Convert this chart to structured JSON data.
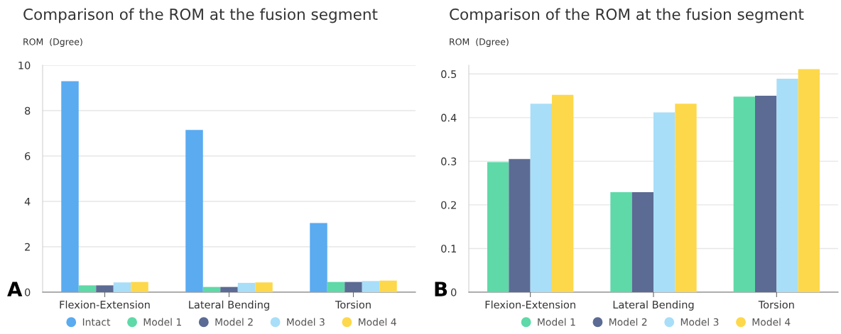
{
  "chart_data": [
    {
      "type": "bar",
      "title": "Comparison of the ROM at the fusion segment",
      "ylabel": "ROM  (Dgree)",
      "categories": [
        "Flexion-Extension",
        "Lateral Bending",
        "Torsion"
      ],
      "series": [
        {
          "name": "Intact",
          "color": "#5aabf0",
          "values": [
            9.3,
            7.15,
            3.05
          ]
        },
        {
          "name": "Model 1",
          "color": "#5fd9a8",
          "values": [
            0.3,
            0.23,
            0.45
          ]
        },
        {
          "name": "Model 2",
          "color": "#5b6b94",
          "values": [
            0.3,
            0.23,
            0.45
          ]
        },
        {
          "name": "Model 3",
          "color": "#a8def8",
          "values": [
            0.43,
            0.41,
            0.49
          ]
        },
        {
          "name": "Model 4",
          "color": "#fdd84a",
          "values": [
            0.45,
            0.43,
            0.51
          ]
        }
      ],
      "ylim": [
        0,
        10
      ],
      "yticks": [
        0,
        2,
        4,
        6,
        8,
        10
      ],
      "grid": "y",
      "legend": "bottom",
      "annotations": [
        "A"
      ]
    },
    {
      "type": "bar",
      "title": "Comparison of the ROM at the fusion segment",
      "ylabel": "ROM  (Dgree)",
      "categories": [
        "Flexion-Extension",
        "Lateral Bending",
        "Torsion"
      ],
      "series": [
        {
          "name": "Model 1",
          "color": "#5fd9a8",
          "values": [
            0.298,
            0.229,
            0.448
          ]
        },
        {
          "name": "Model 2",
          "color": "#5b6b94",
          "values": [
            0.305,
            0.229,
            0.45
          ]
        },
        {
          "name": "Model 3",
          "color": "#a8def8",
          "values": [
            0.432,
            0.412,
            0.489
          ]
        },
        {
          "name": "Model 4",
          "color": "#fdd84a",
          "values": [
            0.452,
            0.432,
            0.511
          ]
        }
      ],
      "ylim": [
        0,
        0.52
      ],
      "yticks": [
        0,
        0.1,
        0.2,
        0.3,
        0.4,
        0.5
      ],
      "grid": "y",
      "legend": "bottom",
      "annotations": [
        "B"
      ]
    }
  ]
}
